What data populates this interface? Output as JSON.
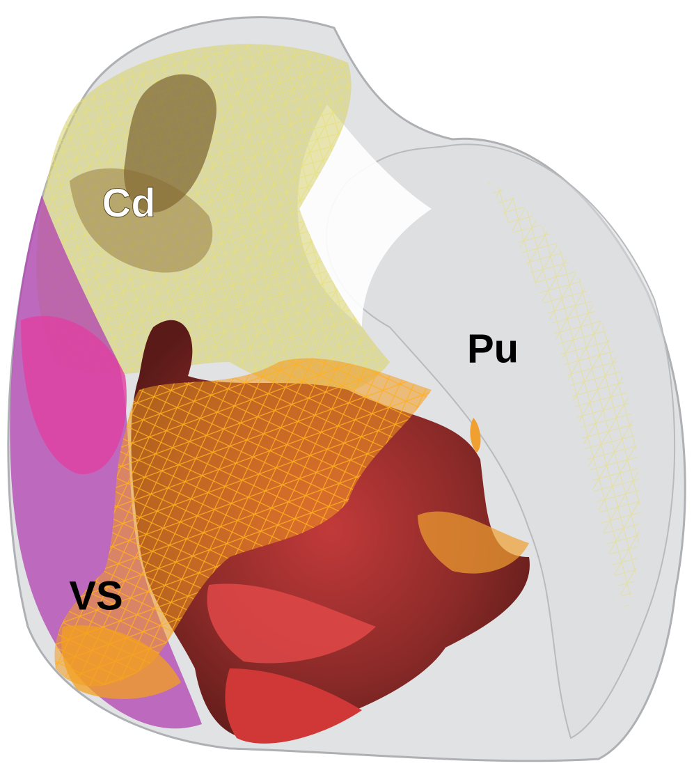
{
  "labels": {
    "cd": "Cd",
    "pu": "Pu",
    "vs": "VS"
  }
}
